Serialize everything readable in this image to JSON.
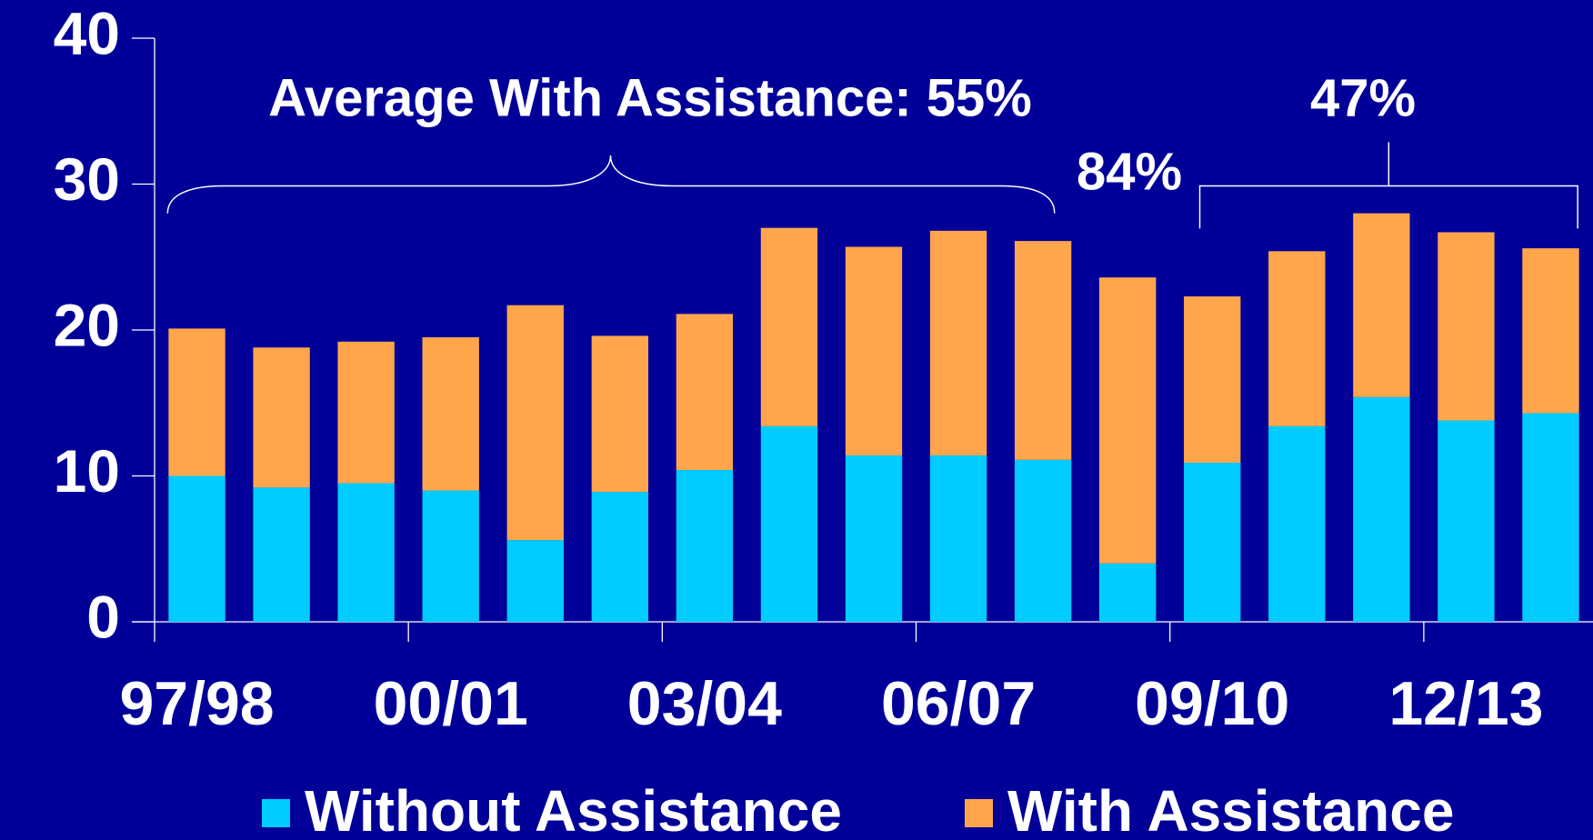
{
  "chart_data": {
    "type": "stacked_bar",
    "categories": [
      "97/98",
      null,
      null,
      "00/01",
      null,
      null,
      "03/04",
      null,
      null,
      "06/07",
      null,
      null,
      "09/10",
      null,
      null,
      "12/13",
      null
    ],
    "series": [
      {
        "name": "Without Assistance",
        "color": "#00ccff",
        "values": [
          10.0,
          9.2,
          9.5,
          9.0,
          5.6,
          8.9,
          10.4,
          13.4,
          11.4,
          11.4,
          11.1,
          4.0,
          10.9,
          13.4,
          15.4,
          13.8,
          14.3
        ]
      },
      {
        "name": "With Assistance",
        "color": "#ffa64d",
        "values": [
          10.1,
          9.6,
          9.7,
          10.5,
          16.1,
          10.7,
          10.7,
          13.6,
          14.3,
          15.4,
          15.0,
          19.6,
          11.4,
          12.0,
          12.6,
          12.9,
          11.3
        ]
      }
    ],
    "ylim": [
      0,
      40
    ],
    "yticks": [
      0,
      10,
      20,
      30,
      40
    ],
    "grid": false,
    "annotations": [
      "Average With Assistance: 55%",
      "84%",
      "47%"
    ]
  }
}
